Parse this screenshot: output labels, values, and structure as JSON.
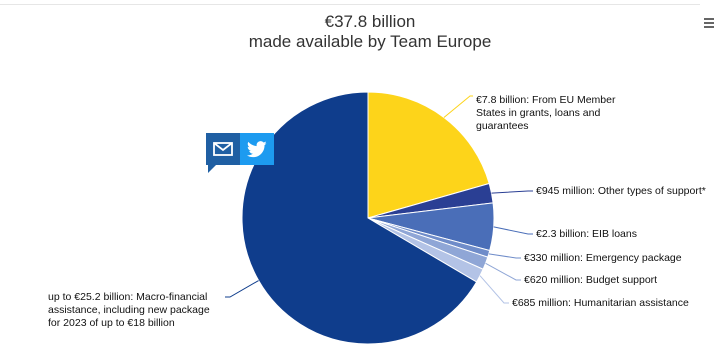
{
  "header": {
    "title_line1": "€37.8 billion",
    "title_line2": "made available by Team Europe",
    "menu_icon": "hamburger-menu-icon"
  },
  "share": {
    "mail_icon": "mail-icon",
    "twitter_icon": "twitter-icon"
  },
  "chart_data": {
    "type": "pie",
    "title": "€37.8 billion made available by Team Europe",
    "slices": [
      {
        "label_lines": [
          "€7.8 billion: From EU Member",
          "States in grants, loans and",
          "guarantees"
        ],
        "value": 7.8,
        "unit": "billion €",
        "color": "#fdd41a"
      },
      {
        "label_lines": [
          "€945 million: Other types of support*"
        ],
        "value": 0.945,
        "unit": "billion €",
        "color": "#2a3f94"
      },
      {
        "label_lines": [
          "€2.3 billion: EIB loans"
        ],
        "value": 2.3,
        "unit": "billion €",
        "color": "#4a6eb8"
      },
      {
        "label_lines": [
          "€330 million: Emergency package"
        ],
        "value": 0.33,
        "unit": "billion €",
        "color": "#6f8cc9"
      },
      {
        "label_lines": [
          "€620 million: Budget support"
        ],
        "value": 0.62,
        "unit": "billion €",
        "color": "#8fa6d6"
      },
      {
        "label_lines": [
          "€685 million: Humanitarian assistance"
        ],
        "value": 0.685,
        "unit": "billion €",
        "color": "#b3c3e6"
      },
      {
        "label_lines": [
          "up to €25.2 billion: Macro-financial",
          "assistance, including new package",
          "for 2023 of up to €18 billion"
        ],
        "value": 25.2,
        "unit": "billion €",
        "color": "#0f3d8c"
      }
    ]
  }
}
